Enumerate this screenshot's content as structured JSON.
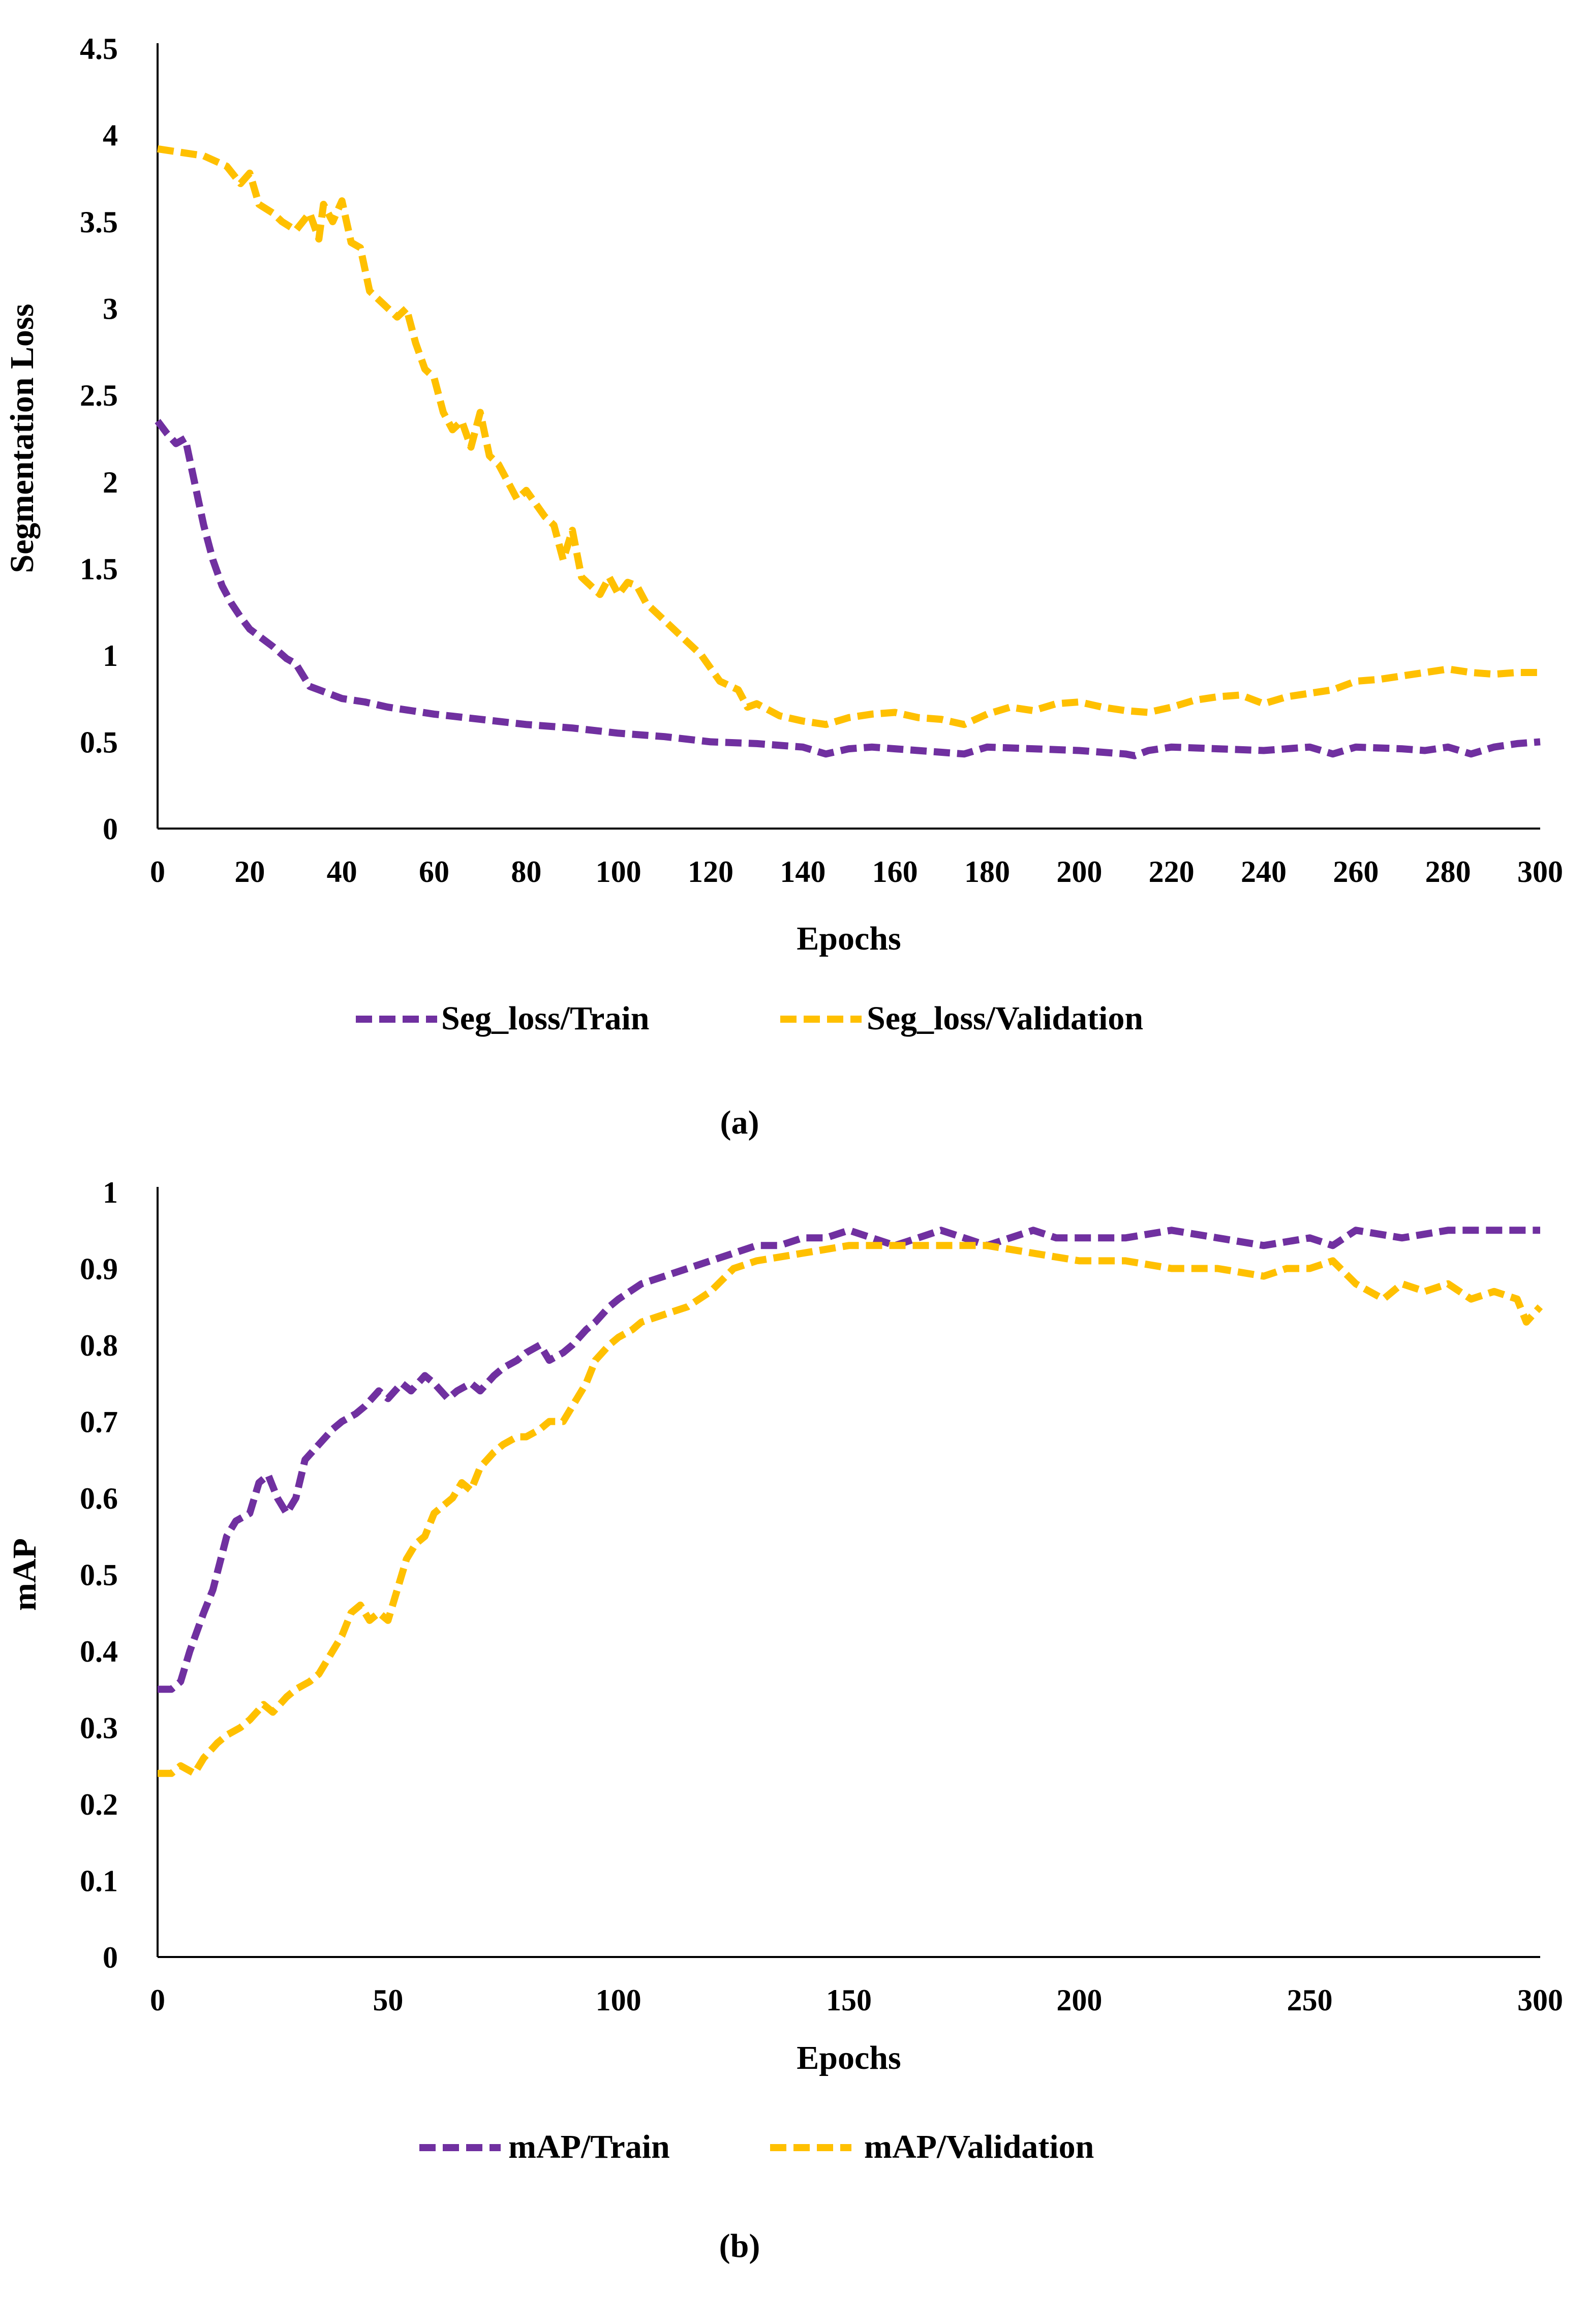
{
  "colors": {
    "train": "#7030A0",
    "validation": "#FFC000",
    "axis": "#000000",
    "text": "#000000"
  },
  "chart_data": [
    {
      "type": "line",
      "panel_label": "(a)",
      "xlabel": "Epochs",
      "ylabel": "Segmentation Loss",
      "xlim": [
        0,
        300
      ],
      "ylim": [
        0,
        4.5
      ],
      "x_ticks": [
        "0",
        "20",
        "40",
        "60",
        "80",
        "100",
        "120",
        "140",
        "160",
        "180",
        "200",
        "220",
        "240",
        "260",
        "280",
        "300"
      ],
      "y_ticks": [
        "0",
        "0.5",
        "1",
        "1.5",
        "2",
        "2.5",
        "3",
        "3.5",
        "4",
        "4.5"
      ],
      "grid": false,
      "legend_position": "bottom",
      "series": [
        {
          "name": "Seg_loss/Train",
          "style": "dashed",
          "x": [
            0,
            2,
            4,
            6,
            8,
            10,
            12,
            14,
            16,
            18,
            20,
            25,
            28,
            30,
            33,
            35,
            40,
            45,
            50,
            55,
            60,
            70,
            80,
            90,
            100,
            110,
            120,
            130,
            140,
            145,
            150,
            155,
            160,
            170,
            175,
            180,
            190,
            200,
            205,
            210,
            212,
            215,
            220,
            230,
            240,
            250,
            255,
            260,
            270,
            275,
            280,
            285,
            290,
            295,
            300
          ],
          "y": [
            2.35,
            2.28,
            2.22,
            2.25,
            2.0,
            1.75,
            1.55,
            1.4,
            1.3,
            1.22,
            1.15,
            1.05,
            0.98,
            0.95,
            0.82,
            0.8,
            0.75,
            0.73,
            0.7,
            0.68,
            0.66,
            0.63,
            0.6,
            0.58,
            0.55,
            0.53,
            0.5,
            0.49,
            0.47,
            0.43,
            0.46,
            0.47,
            0.46,
            0.44,
            0.43,
            0.47,
            0.46,
            0.45,
            0.44,
            0.43,
            0.42,
            0.45,
            0.47,
            0.46,
            0.45,
            0.47,
            0.43,
            0.47,
            0.46,
            0.45,
            0.47,
            0.43,
            0.47,
            0.49,
            0.5
          ]
        },
        {
          "name": "Seg_loss/Validation",
          "style": "dashed",
          "x": [
            0,
            5,
            10,
            15,
            18,
            20,
            22,
            25,
            27,
            30,
            33,
            35,
            36,
            38,
            40,
            42,
            44,
            46,
            48,
            50,
            52,
            54,
            56,
            58,
            60,
            62,
            64,
            66,
            68,
            70,
            72,
            74,
            76,
            78,
            80,
            84,
            86,
            88,
            90,
            92,
            94,
            96,
            98,
            100,
            102,
            104,
            106,
            110,
            114,
            118,
            122,
            126,
            128,
            130,
            135,
            140,
            145,
            150,
            155,
            160,
            165,
            170,
            175,
            180,
            185,
            190,
            195,
            200,
            205,
            210,
            215,
            220,
            225,
            230,
            235,
            240,
            245,
            250,
            255,
            260,
            265,
            270,
            275,
            280,
            285,
            290,
            295,
            300
          ],
          "y": [
            3.92,
            3.9,
            3.88,
            3.82,
            3.72,
            3.78,
            3.6,
            3.55,
            3.5,
            3.45,
            3.55,
            3.4,
            3.6,
            3.5,
            3.62,
            3.38,
            3.35,
            3.1,
            3.05,
            3.0,
            2.95,
            3.0,
            2.8,
            2.65,
            2.6,
            2.4,
            2.3,
            2.35,
            2.2,
            2.4,
            2.15,
            2.1,
            2.0,
            1.9,
            1.95,
            1.8,
            1.75,
            1.55,
            1.72,
            1.45,
            1.4,
            1.35,
            1.45,
            1.35,
            1.42,
            1.4,
            1.3,
            1.2,
            1.1,
            1.0,
            0.85,
            0.8,
            0.7,
            0.72,
            0.65,
            0.62,
            0.6,
            0.64,
            0.66,
            0.67,
            0.64,
            0.63,
            0.6,
            0.66,
            0.7,
            0.68,
            0.72,
            0.73,
            0.7,
            0.68,
            0.67,
            0.7,
            0.74,
            0.76,
            0.77,
            0.72,
            0.76,
            0.78,
            0.8,
            0.85,
            0.86,
            0.88,
            0.9,
            0.92,
            0.9,
            0.89,
            0.9,
            0.9
          ]
        }
      ]
    },
    {
      "type": "line",
      "panel_label": "(b)",
      "xlabel": "Epochs",
      "ylabel": "mAP",
      "xlim": [
        0,
        300
      ],
      "ylim": [
        0,
        1
      ],
      "x_ticks": [
        "0",
        "50",
        "100",
        "150",
        "200",
        "250",
        "300"
      ],
      "y_ticks": [
        "0",
        "0.1",
        "0.2",
        "0.3",
        "0.4",
        "0.5",
        "0.6",
        "0.7",
        "0.8",
        "0.9",
        "1"
      ],
      "grid": false,
      "legend_position": "bottom",
      "series": [
        {
          "name": "mAP/Train",
          "style": "dashed",
          "x": [
            0,
            3,
            5,
            7,
            10,
            12,
            15,
            17,
            20,
            22,
            24,
            26,
            28,
            30,
            32,
            35,
            38,
            40,
            43,
            45,
            48,
            50,
            53,
            55,
            58,
            60,
            63,
            65,
            68,
            70,
            73,
            75,
            78,
            80,
            83,
            85,
            88,
            90,
            93,
            95,
            98,
            100,
            105,
            110,
            115,
            120,
            125,
            130,
            135,
            140,
            145,
            150,
            155,
            160,
            165,
            170,
            175,
            180,
            185,
            190,
            195,
            200,
            210,
            220,
            230,
            240,
            250,
            255,
            260,
            270,
            280,
            290,
            300
          ],
          "y": [
            0.35,
            0.35,
            0.36,
            0.4,
            0.45,
            0.48,
            0.55,
            0.57,
            0.58,
            0.62,
            0.63,
            0.6,
            0.58,
            0.6,
            0.65,
            0.67,
            0.69,
            0.7,
            0.71,
            0.72,
            0.74,
            0.73,
            0.75,
            0.74,
            0.76,
            0.75,
            0.73,
            0.74,
            0.75,
            0.74,
            0.76,
            0.77,
            0.78,
            0.79,
            0.8,
            0.78,
            0.79,
            0.8,
            0.82,
            0.83,
            0.85,
            0.86,
            0.88,
            0.89,
            0.9,
            0.91,
            0.92,
            0.93,
            0.93,
            0.94,
            0.94,
            0.95,
            0.94,
            0.93,
            0.94,
            0.95,
            0.94,
            0.93,
            0.94,
            0.95,
            0.94,
            0.94,
            0.94,
            0.95,
            0.94,
            0.93,
            0.94,
            0.93,
            0.95,
            0.94,
            0.95,
            0.95,
            0.95
          ]
        },
        {
          "name": "mAP/Validation",
          "style": "dashed",
          "x": [
            0,
            3,
            5,
            8,
            10,
            13,
            15,
            18,
            20,
            23,
            25,
            28,
            30,
            33,
            35,
            38,
            40,
            42,
            44,
            46,
            48,
            50,
            52,
            54,
            56,
            58,
            60,
            62,
            64,
            66,
            68,
            70,
            73,
            75,
            78,
            80,
            83,
            85,
            88,
            90,
            93,
            95,
            98,
            100,
            103,
            105,
            110,
            115,
            120,
            125,
            130,
            140,
            150,
            160,
            170,
            180,
            190,
            200,
            210,
            220,
            230,
            240,
            245,
            250,
            255,
            260,
            263,
            266,
            270,
            275,
            280,
            285,
            290,
            295,
            297,
            300
          ],
          "y": [
            0.24,
            0.24,
            0.25,
            0.24,
            0.26,
            0.28,
            0.29,
            0.3,
            0.31,
            0.33,
            0.32,
            0.34,
            0.35,
            0.36,
            0.37,
            0.4,
            0.42,
            0.45,
            0.46,
            0.44,
            0.45,
            0.44,
            0.48,
            0.52,
            0.54,
            0.55,
            0.58,
            0.59,
            0.6,
            0.62,
            0.61,
            0.64,
            0.66,
            0.67,
            0.68,
            0.68,
            0.69,
            0.7,
            0.7,
            0.72,
            0.75,
            0.78,
            0.8,
            0.81,
            0.82,
            0.83,
            0.84,
            0.85,
            0.87,
            0.9,
            0.91,
            0.92,
            0.93,
            0.93,
            0.93,
            0.93,
            0.92,
            0.91,
            0.91,
            0.9,
            0.9,
            0.89,
            0.9,
            0.9,
            0.91,
            0.88,
            0.87,
            0.86,
            0.88,
            0.87,
            0.88,
            0.86,
            0.87,
            0.86,
            0.83,
            0.85
          ]
        }
      ]
    }
  ]
}
